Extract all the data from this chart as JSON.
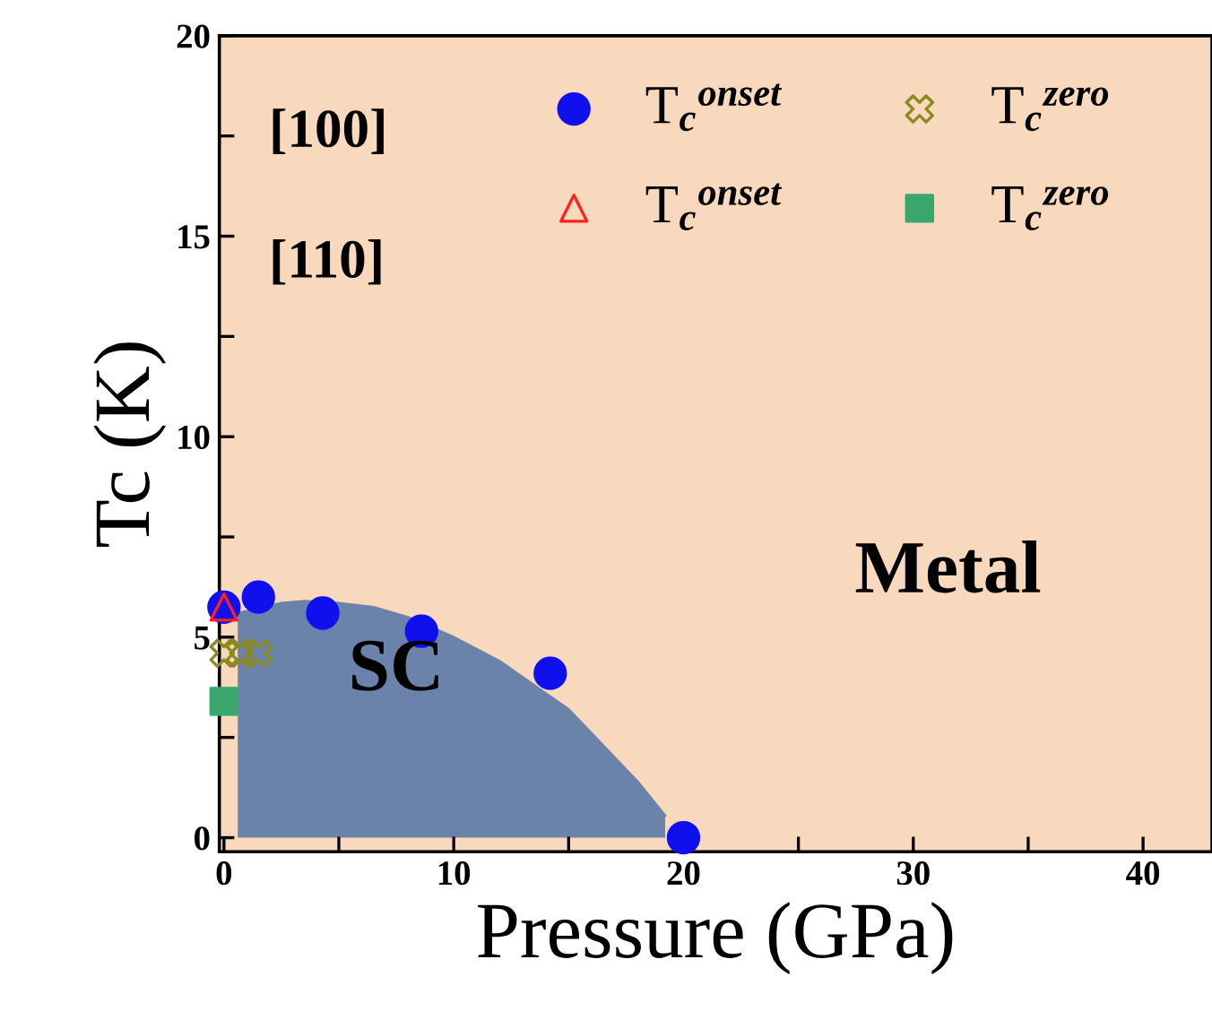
{
  "chart_data": {
    "type": "scatter",
    "xlabel": "Pressure (GPa)",
    "ylabel": "Tc (K)",
    "xlim": [
      -0.2,
      43
    ],
    "ylim": [
      -0.35,
      20
    ],
    "xticks": [
      0,
      {
        "value": 5,
        "label": null
      },
      10,
      {
        "value": 15,
        "label": null
      },
      20,
      {
        "value": 25,
        "label": null
      },
      30,
      {
        "value": 35,
        "label": null
      },
      40
    ],
    "yticks": [
      0,
      {
        "value": 2.5,
        "label": null
      },
      5,
      {
        "value": 7.5,
        "label": null
      },
      10,
      {
        "value": 12.5,
        "label": null
      },
      15,
      {
        "value": 17.5,
        "label": null
      },
      20
    ],
    "grid": false,
    "legend": "top",
    "bands": [
      {
        "axis": "x",
        "from": -0.2,
        "to": 43,
        "color": "#f9d9bd",
        "label": "Metal"
      }
    ],
    "series": [
      {
        "type": "area",
        "color": "#6b82ab",
        "x": [
          0.6,
          2.5,
          3.5,
          5,
          6.5,
          8,
          10,
          12,
          14,
          15,
          16,
          17,
          18,
          19.2
        ],
        "values": [
          5.6,
          5.85,
          5.9,
          5.85,
          5.75,
          5.5,
          5.0,
          4.4,
          3.6,
          3.2,
          2.6,
          2.0,
          1.4,
          0.55
        ]
      },
      {
        "name": "T$_{c}$$^{onset}$",
        "color": "#1010ee",
        "marker": "circle",
        "x": [
          0,
          1.5,
          4.3,
          8.6,
          14.2,
          20
        ],
        "values": [
          5.75,
          6.0,
          5.6,
          5.15,
          4.1,
          0
        ]
      },
      {
        "name": "T$_{c}$$^{onset}$",
        "color": "#ff2020",
        "marker": "triangle",
        "x": [
          0
        ],
        "values": [
          5.75
        ]
      },
      {
        "name": "T$_{c}$$^{zero}$",
        "color": "#8a8a20",
        "marker": "cross",
        "x": [
          0,
          0.7,
          1.5
        ],
        "values": [
          4.6,
          4.6,
          4.6
        ]
      },
      {
        "name": "T$_{c}$$^{zero}$",
        "color": "#3aa86e",
        "marker": "square",
        "x": [
          0
        ],
        "values": [
          3.4
        ]
      }
    ],
    "annotations": [
      "[100]",
      "[110]",
      "SC"
    ]
  }
}
